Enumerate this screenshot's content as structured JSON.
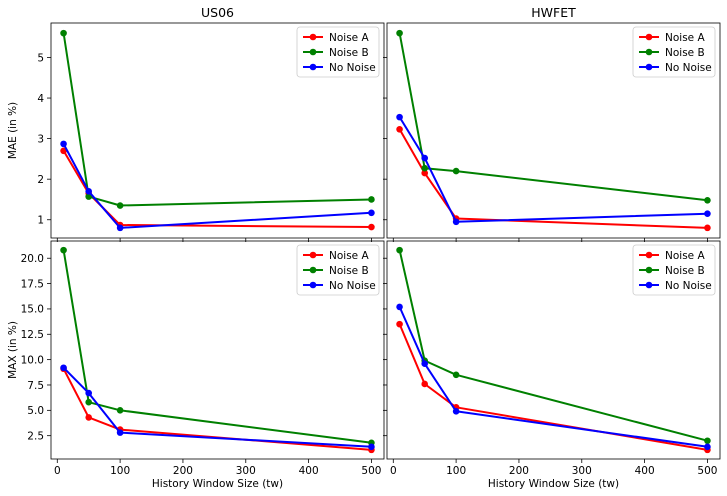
{
  "colors": {
    "noise_a": "#ff0000",
    "noise_b": "#008000",
    "no_noise": "#0000ff",
    "axis": "#000000",
    "background": "#ffffff"
  },
  "chart_data": [
    {
      "type": "line",
      "title": "US06",
      "xlabel": "",
      "ylabel": "MAE (in %)",
      "xlim": [
        -10,
        520
      ],
      "ylim": [
        0.55,
        5.85
      ],
      "xticks": [
        0,
        100,
        200,
        300,
        400,
        500
      ],
      "xtick_labels": [],
      "yticks": [
        1,
        2,
        3,
        4,
        5
      ],
      "ytick_labels": [
        "1",
        "2",
        "3",
        "4",
        "5"
      ],
      "legend": "top-right",
      "x": [
        10,
        50,
        100,
        500
      ],
      "series": [
        {
          "name": "Noise A",
          "color": "#ff0000",
          "values": [
            2.7,
            1.65,
            0.87,
            0.82
          ]
        },
        {
          "name": "Noise B",
          "color": "#008000",
          "values": [
            5.6,
            1.57,
            1.35,
            1.5
          ]
        },
        {
          "name": "No Noise",
          "color": "#0000ff",
          "values": [
            2.87,
            1.7,
            0.8,
            1.17
          ]
        }
      ]
    },
    {
      "type": "line",
      "title": "HWFET",
      "xlabel": "",
      "ylabel": "",
      "xlim": [
        -10,
        520
      ],
      "ylim": [
        0.55,
        5.85
      ],
      "xticks": [
        0,
        100,
        200,
        300,
        400,
        500
      ],
      "xtick_labels": [],
      "yticks": [
        1,
        2,
        3,
        4,
        5
      ],
      "ytick_labels": [],
      "legend": "top-right",
      "x": [
        10,
        50,
        100,
        500
      ],
      "series": [
        {
          "name": "Noise A",
          "color": "#ff0000",
          "values": [
            3.23,
            2.15,
            1.03,
            0.8
          ]
        },
        {
          "name": "Noise B",
          "color": "#008000",
          "values": [
            5.6,
            2.27,
            2.2,
            1.48
          ]
        },
        {
          "name": "No Noise",
          "color": "#0000ff",
          "values": [
            3.53,
            2.52,
            0.95,
            1.15
          ]
        }
      ]
    },
    {
      "type": "line",
      "title": "",
      "xlabel": "History Window Size (tw)",
      "ylabel": "MAX (in %)",
      "xlim": [
        -10,
        520
      ],
      "ylim": [
        0.2,
        21.7
      ],
      "xticks": [
        0,
        100,
        200,
        300,
        400,
        500
      ],
      "xtick_labels": [
        "0",
        "100",
        "200",
        "300",
        "400",
        "500"
      ],
      "yticks": [
        2.5,
        5.0,
        7.5,
        10.0,
        12.5,
        15.0,
        17.5,
        20.0
      ],
      "ytick_labels": [
        "2.5",
        "5.0",
        "7.5",
        "10.0",
        "12.5",
        "15.0",
        "17.5",
        "20.0"
      ],
      "legend": "top-right",
      "x": [
        10,
        50,
        100,
        500
      ],
      "series": [
        {
          "name": "Noise A",
          "color": "#ff0000",
          "values": [
            9.1,
            4.3,
            3.1,
            1.1
          ]
        },
        {
          "name": "Noise B",
          "color": "#008000",
          "values": [
            20.8,
            5.8,
            5.0,
            1.8
          ]
        },
        {
          "name": "No Noise",
          "color": "#0000ff",
          "values": [
            9.2,
            6.7,
            2.8,
            1.4
          ]
        }
      ]
    },
    {
      "type": "line",
      "title": "",
      "xlabel": "History Window Size (tw)",
      "ylabel": "",
      "xlim": [
        -10,
        520
      ],
      "ylim": [
        0.2,
        21.7
      ],
      "xticks": [
        0,
        100,
        200,
        300,
        400,
        500
      ],
      "xtick_labels": [
        "0",
        "100",
        "200",
        "300",
        "400",
        "500"
      ],
      "yticks": [
        2.5,
        5.0,
        7.5,
        10.0,
        12.5,
        15.0,
        17.5,
        20.0
      ],
      "ytick_labels": [],
      "legend": "top-right",
      "x": [
        10,
        50,
        100,
        500
      ],
      "series": [
        {
          "name": "Noise A",
          "color": "#ff0000",
          "values": [
            13.5,
            7.6,
            5.3,
            1.1
          ]
        },
        {
          "name": "Noise B",
          "color": "#008000",
          "values": [
            20.8,
            9.9,
            8.5,
            2.0
          ]
        },
        {
          "name": "No Noise",
          "color": "#0000ff",
          "values": [
            15.2,
            9.6,
            4.9,
            1.4
          ]
        }
      ]
    }
  ]
}
